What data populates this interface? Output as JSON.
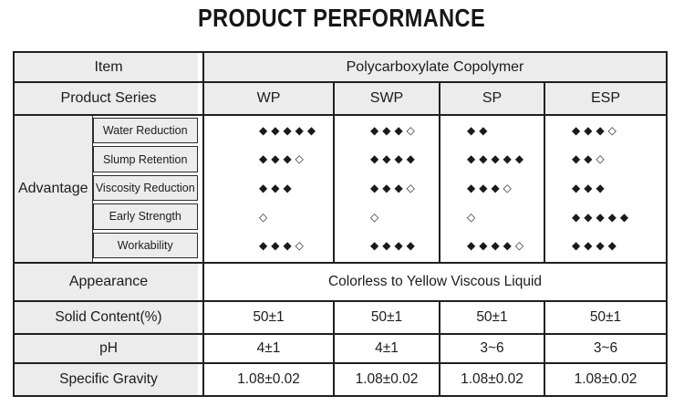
{
  "title": "PRODUCT PERFORMANCE",
  "colors": {
    "table_border": "#202020",
    "header_cell_bg": "#ececec",
    "text": "#1c1c1c"
  },
  "table": {
    "item_label": "Item",
    "item_value": "Polycarboxylate Copolymer",
    "series_label": "Product Series",
    "series": [
      "WP",
      "SWP",
      "SP",
      "ESP"
    ],
    "advantage": {
      "label": "Advantage",
      "criteria": [
        "Water Reduction",
        "Slump Retention",
        "Viscosity Reduction",
        "Early Strength",
        "Workability"
      ],
      "ratings": {
        "wp": [
          "◆◆◆◆◆",
          "◆◆◆◇",
          "◆◆◆",
          "◇",
          "◆◆◆◇"
        ],
        "swp": [
          "◆◆◆◇",
          "◆◆◆◆",
          "◆◆◆◇",
          "◇",
          "◆◆◆◆"
        ],
        "sp": [
          "◆◆",
          "◆◆◆◆◆",
          "◆◆◆◇",
          "◇",
          "◆◆◆◆◇"
        ],
        "esp": [
          "◆◆◆◇",
          "◆◆◇",
          "◆◆◆",
          "◆◆◆◆◆",
          "◆◆◆◆"
        ]
      }
    },
    "appearance": {
      "label": "Appearance",
      "value": "Colorless to Yellow Viscous Liquid"
    },
    "solid_content": {
      "label": "Solid Content(%)",
      "values": [
        "50±1",
        "50±1",
        "50±1",
        "50±1"
      ]
    },
    "ph": {
      "label": "pH",
      "values": [
        "4±1",
        "4±1",
        "3~6",
        "3~6"
      ]
    },
    "specific_gravity": {
      "label": "Specific Gravity",
      "values": [
        "1.08±0.02",
        "1.08±0.02",
        "1.08±0.02",
        "1.08±0.02"
      ]
    }
  }
}
